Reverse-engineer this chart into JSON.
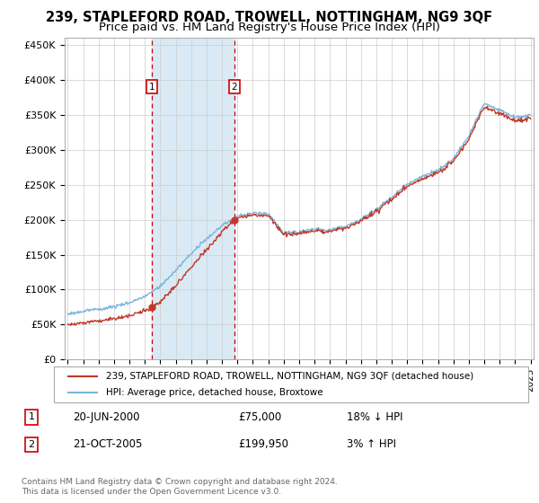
{
  "title": "239, STAPLEFORD ROAD, TROWELL, NOTTINGHAM, NG9 3QF",
  "subtitle": "Price paid vs. HM Land Registry's House Price Index (HPI)",
  "title_fontsize": 10.5,
  "subtitle_fontsize": 9.5,
  "x_start_year": 1995,
  "x_end_year": 2025,
  "y_min": 0,
  "y_max": 460000,
  "y_ticks": [
    0,
    50000,
    100000,
    150000,
    200000,
    250000,
    300000,
    350000,
    400000,
    450000
  ],
  "y_tick_labels": [
    "£0",
    "£50K",
    "£100K",
    "£150K",
    "£200K",
    "£250K",
    "£300K",
    "£350K",
    "£400K",
    "£450K"
  ],
  "sale1_year": 2000.47,
  "sale1_price": 75000,
  "sale2_year": 2005.8,
  "sale2_price": 199950,
  "hpi_line_color": "#7ab6d9",
  "sale_line_color": "#c0392b",
  "shade_color": "#daeaf5",
  "grid_color": "#cccccc",
  "annotation_box_color": "#cc0000",
  "legend_label_sale": "239, STAPLEFORD ROAD, TROWELL, NOTTINGHAM, NG9 3QF (detached house)",
  "legend_label_hpi": "HPI: Average price, detached house, Broxtowe",
  "footer1": "Contains HM Land Registry data © Crown copyright and database right 2024.",
  "footer2": "This data is licensed under the Open Government Licence v3.0.",
  "note1_label": "1",
  "note1_date": "20-JUN-2000",
  "note1_price": "£75,000",
  "note1_hpi": "18% ↓ HPI",
  "note2_label": "2",
  "note2_date": "21-OCT-2005",
  "note2_price": "£199,950",
  "note2_hpi": "3% ↑ HPI",
  "hpi_keypoints_x": [
    1995,
    1996,
    1997,
    1998,
    1999,
    2000,
    2001,
    2002,
    2003,
    2004,
    2005,
    2006,
    2007,
    2008,
    2009,
    2010,
    2011,
    2012,
    2013,
    2014,
    2015,
    2016,
    2017,
    2018,
    2019,
    2020,
    2021,
    2022,
    2023,
    2024,
    2025
  ],
  "hpi_keypoints_y": [
    65000,
    68000,
    72000,
    76000,
    82000,
    90000,
    105000,
    128000,
    152000,
    172000,
    192000,
    205000,
    210000,
    210000,
    183000,
    185000,
    188000,
    187000,
    192000,
    202000,
    215000,
    232000,
    252000,
    263000,
    272000,
    288000,
    320000,
    368000,
    358000,
    347000,
    350000
  ]
}
